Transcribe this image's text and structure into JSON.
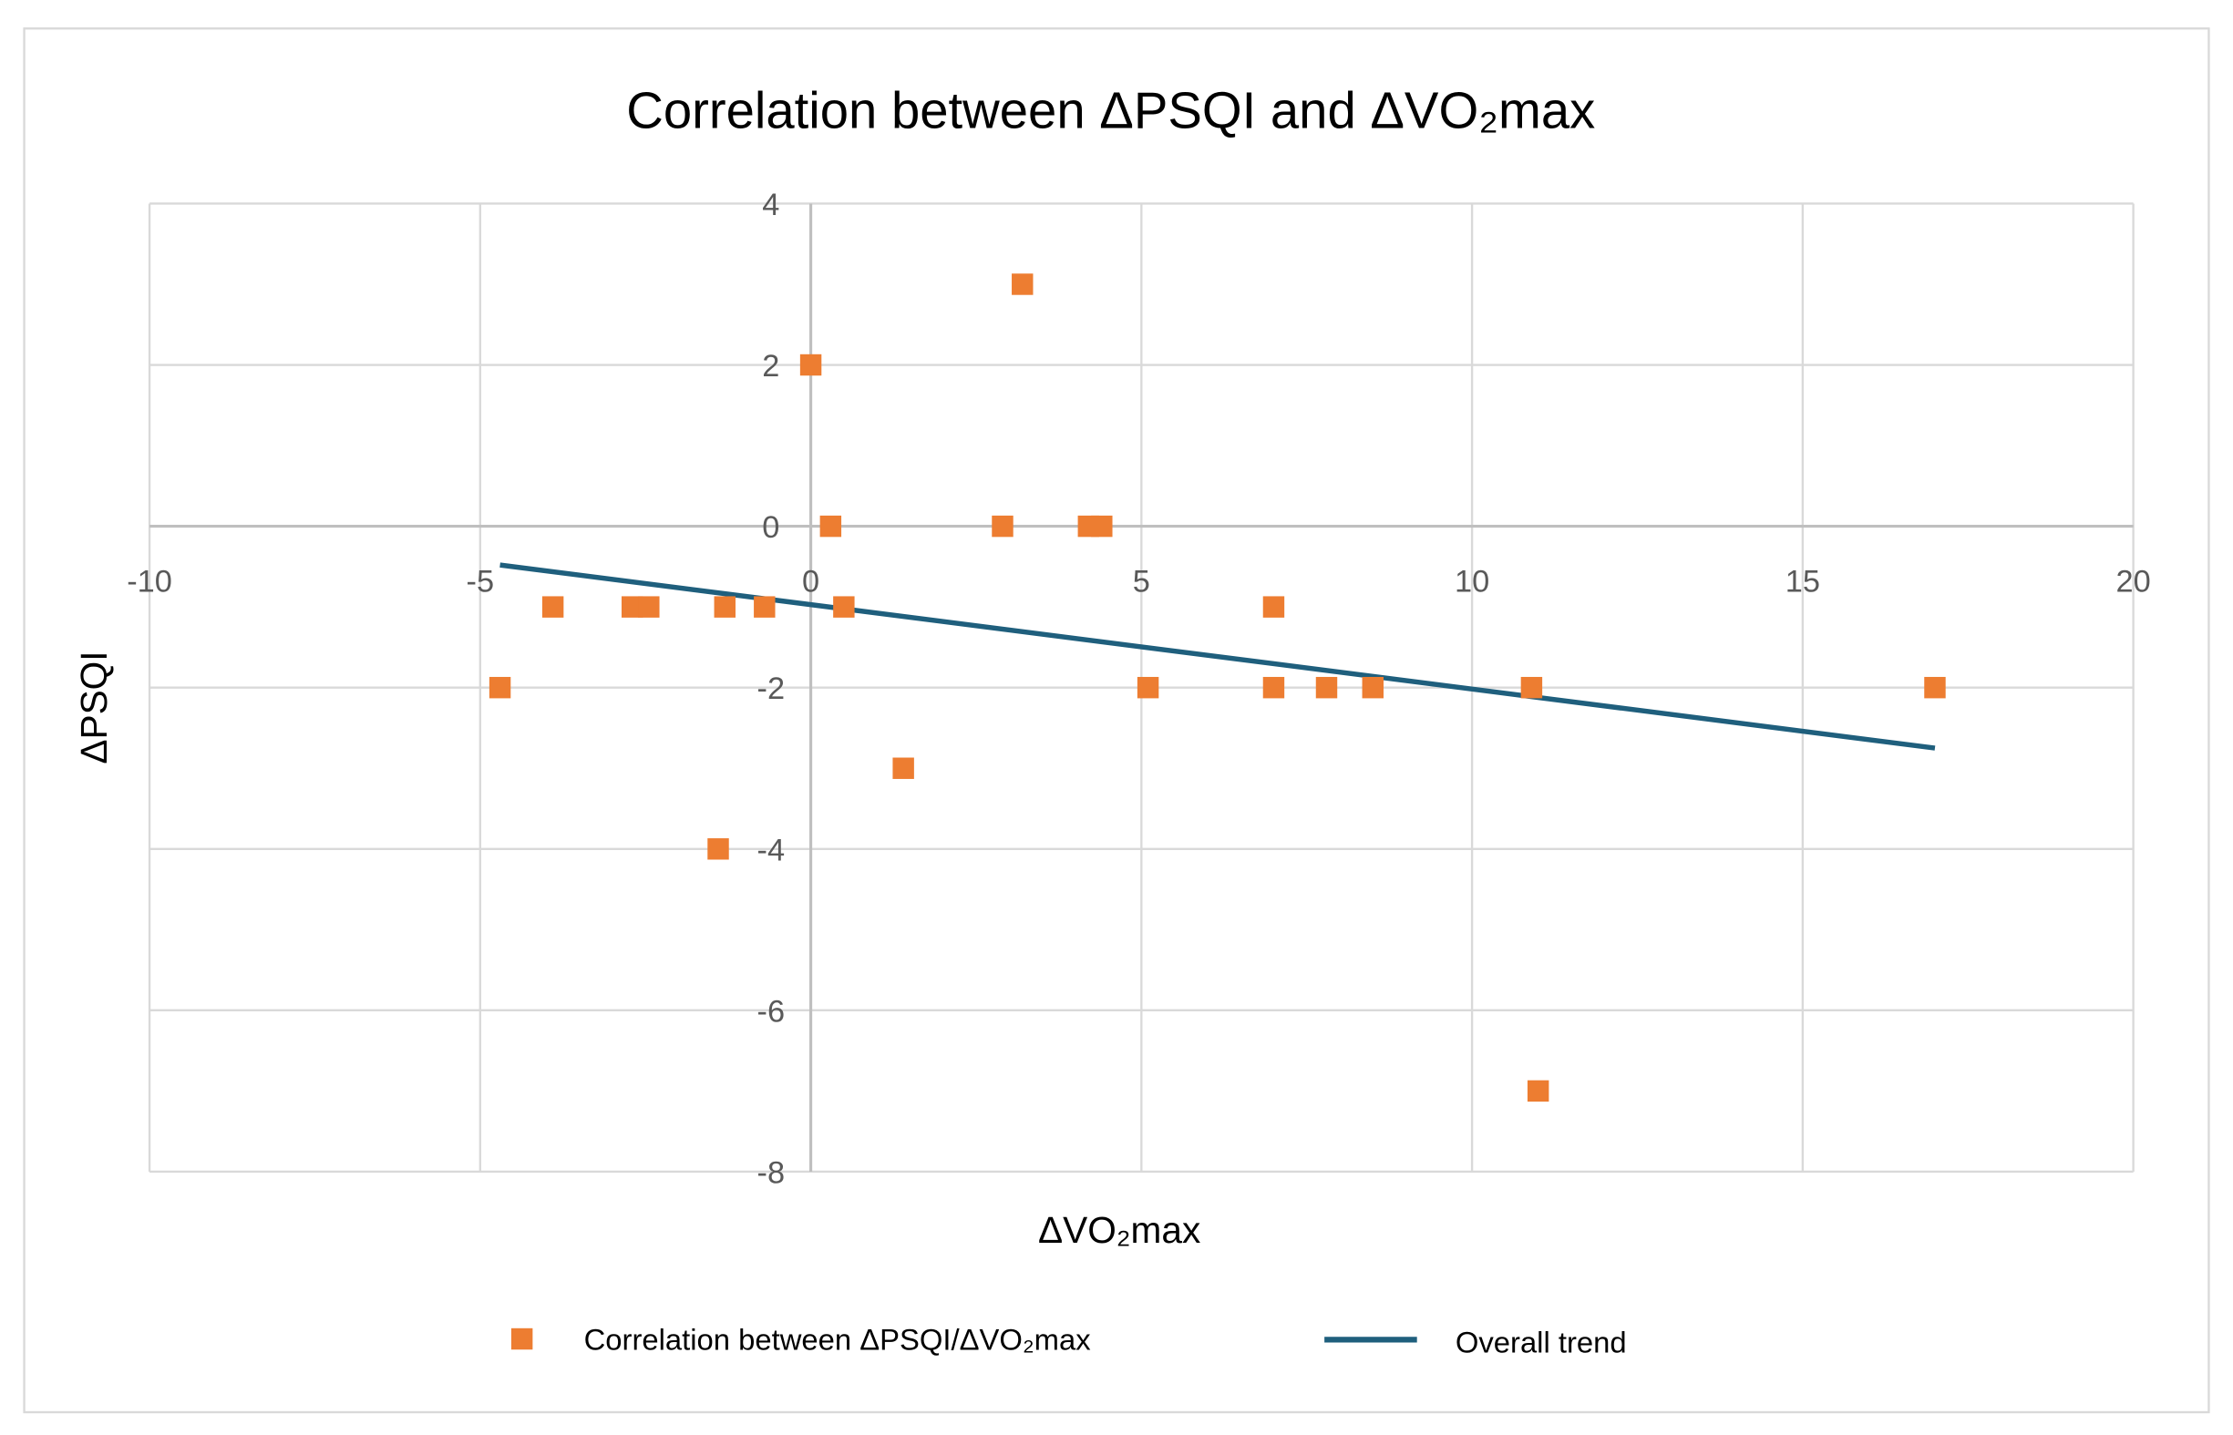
{
  "chart_data": {
    "type": "scatter",
    "title": "Correlation between ΔPSQI and ΔVO₂max",
    "xlabel": "ΔVO₂max",
    "ylabel": "ΔPSQI",
    "xlim": [
      -10,
      20
    ],
    "ylim": [
      -8,
      4
    ],
    "xticks": [
      -10,
      -5,
      0,
      5,
      10,
      15,
      20
    ],
    "yticks": [
      -8,
      -6,
      -4,
      -2,
      0,
      2,
      4
    ],
    "grid": true,
    "legend_position": "bottom",
    "series": [
      {
        "name": "Correlation between ΔPSQI/ΔVO₂max",
        "type": "scatter",
        "color": "#ED7D31",
        "points": [
          [
            -4.7,
            -2
          ],
          [
            -3.9,
            -1
          ],
          [
            -2.7,
            -1
          ],
          [
            -2.45,
            -1
          ],
          [
            -1.3,
            -1
          ],
          [
            -0.7,
            -1
          ],
          [
            -1.4,
            -4
          ],
          [
            0,
            2
          ],
          [
            0.3,
            0
          ],
          [
            0.5,
            -1
          ],
          [
            1.4,
            -3
          ],
          [
            2.9,
            0
          ],
          [
            3.2,
            3
          ],
          [
            4.2,
            0
          ],
          [
            4.4,
            0
          ],
          [
            5.1,
            -2
          ],
          [
            7.0,
            -1
          ],
          [
            7.0,
            -2
          ],
          [
            7.8,
            -2
          ],
          [
            8.5,
            -2
          ],
          [
            10.9,
            -2
          ],
          [
            11.0,
            -7
          ],
          [
            17.0,
            -2
          ]
        ]
      },
      {
        "name": "Overall trend",
        "type": "line",
        "color": "#1F5F7D",
        "points": [
          [
            -4.7,
            -0.48
          ],
          [
            17.0,
            -2.75
          ]
        ]
      }
    ]
  }
}
